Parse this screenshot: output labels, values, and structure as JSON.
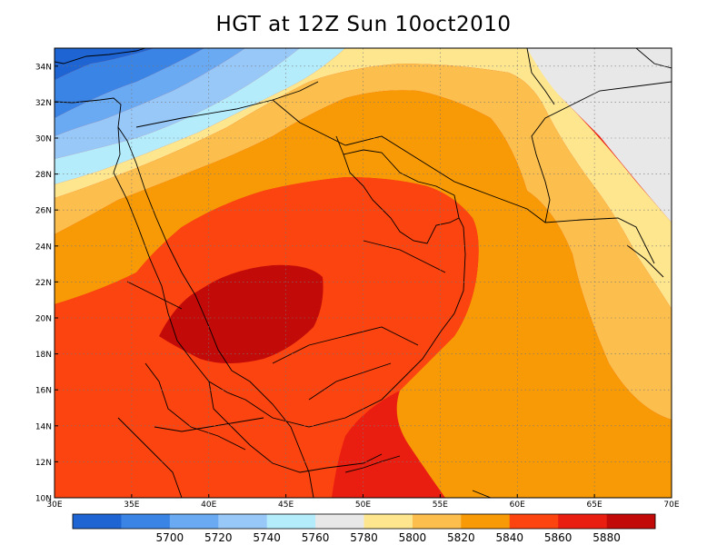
{
  "title": "HGT at 12Z Sun 10oct2010",
  "map": {
    "lat_labels": [
      "34N",
      "32N",
      "30N",
      "28N",
      "26N",
      "24N",
      "22N",
      "20N",
      "18N",
      "16N",
      "14N",
      "12N",
      "10N"
    ],
    "lon_labels": [
      "30E",
      "35E",
      "40E",
      "45E",
      "50E",
      "55E",
      "60E",
      "65E",
      "70E"
    ],
    "lat_range": [
      10,
      35
    ],
    "lon_range": [
      30,
      70
    ],
    "grid": "dotted"
  },
  "colorbar": {
    "colors": [
      "#1e64d2",
      "#3a84e6",
      "#6aaaf2",
      "#98c8f8",
      "#b4ecfc",
      "#e8e8e8",
      "#fee68e",
      "#fcbe4c",
      "#f89a06",
      "#fc4410",
      "#ea1e10",
      "#c20a08"
    ],
    "labels": [
      "5700",
      "5720",
      "5740",
      "5760",
      "5780",
      "5800",
      "5820",
      "5840",
      "5860",
      "5880"
    ]
  }
}
